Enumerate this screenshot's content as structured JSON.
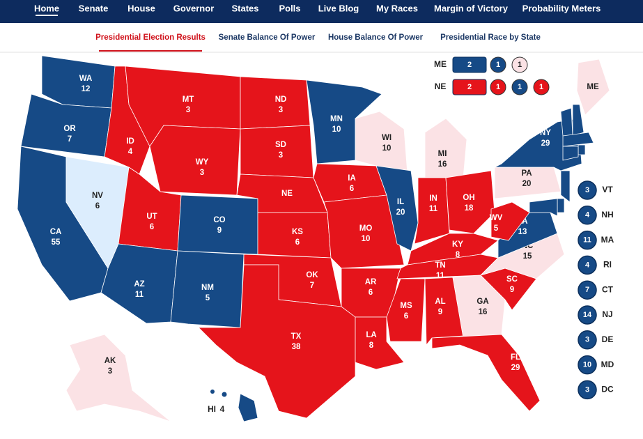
{
  "nav": {
    "items": [
      "Home",
      "Senate",
      "House",
      "Governor",
      "States",
      "Polls",
      "Live Blog",
      "My Races",
      "Margin of Victory",
      "Probability Meters"
    ],
    "active": 0
  },
  "subnav": {
    "items": [
      "Presidential Election Results",
      "Senate Balance Of Power",
      "House Balance Of Power",
      "Presidential Race by State"
    ],
    "active": 0
  },
  "map": {
    "states": [
      {
        "abbr": "WA",
        "votes": 12,
        "color": "#164a86"
      },
      {
        "abbr": "OR",
        "votes": 7,
        "color": "#164a86"
      },
      {
        "abbr": "CA",
        "votes": 55,
        "color": "#164a86"
      },
      {
        "abbr": "NV",
        "votes": 6,
        "color": "#dcedfd"
      },
      {
        "abbr": "ID",
        "votes": 4,
        "color": "#e5141b"
      },
      {
        "abbr": "MT",
        "votes": 3,
        "color": "#e5141b"
      },
      {
        "abbr": "WY",
        "votes": 3,
        "color": "#e5141b"
      },
      {
        "abbr": "UT",
        "votes": 6,
        "color": "#e5141b"
      },
      {
        "abbr": "CO",
        "votes": 9,
        "color": "#164a86"
      },
      {
        "abbr": "AZ",
        "votes": 11,
        "color": "#164a86"
      },
      {
        "abbr": "NM",
        "votes": 5,
        "color": "#164a86"
      },
      {
        "abbr": "ND",
        "votes": 3,
        "color": "#e5141b"
      },
      {
        "abbr": "SD",
        "votes": 3,
        "color": "#e5141b"
      },
      {
        "abbr": "NE",
        "color": "#e5141b"
      },
      {
        "abbr": "KS",
        "votes": 6,
        "color": "#e5141b"
      },
      {
        "abbr": "OK",
        "votes": 7,
        "color": "#e5141b"
      },
      {
        "abbr": "TX",
        "votes": 38,
        "color": "#e5141b"
      },
      {
        "abbr": "MN",
        "votes": 10,
        "color": "#164a86"
      },
      {
        "abbr": "IA",
        "votes": 6,
        "color": "#e5141b"
      },
      {
        "abbr": "MO",
        "votes": 10,
        "color": "#e5141b"
      },
      {
        "abbr": "AR",
        "votes": 6,
        "color": "#e5141b"
      },
      {
        "abbr": "LA",
        "votes": 8,
        "color": "#e5141b"
      },
      {
        "abbr": "WI",
        "votes": 10,
        "color": "#fbe2e5"
      },
      {
        "abbr": "IL",
        "votes": 20,
        "color": "#164a86"
      },
      {
        "abbr": "MI",
        "votes": 16,
        "color": "#fbe2e5"
      },
      {
        "abbr": "IN",
        "votes": 11,
        "color": "#e5141b"
      },
      {
        "abbr": "OH",
        "votes": 18,
        "color": "#e5141b"
      },
      {
        "abbr": "KY",
        "votes": 8,
        "color": "#e5141b"
      },
      {
        "abbr": "TN",
        "votes": 11,
        "color": "#e5141b"
      },
      {
        "abbr": "MS",
        "votes": 6,
        "color": "#e5141b"
      },
      {
        "abbr": "AL",
        "votes": 9,
        "color": "#e5141b"
      },
      {
        "abbr": "GA",
        "votes": 16,
        "color": "#fbe2e5"
      },
      {
        "abbr": "FL",
        "votes": 29,
        "color": "#e5141b"
      },
      {
        "abbr": "SC",
        "votes": 9,
        "color": "#e5141b"
      },
      {
        "abbr": "NC",
        "votes": 15,
        "color": "#fbe2e5"
      },
      {
        "abbr": "VA",
        "votes": 13,
        "color": "#164a86"
      },
      {
        "abbr": "WV",
        "votes": 5,
        "color": "#e5141b"
      },
      {
        "abbr": "PA",
        "votes": 20,
        "color": "#fbe2e5"
      },
      {
        "abbr": "NY",
        "votes": 29,
        "color": "#164a86"
      },
      {
        "abbr": "ME",
        "color": "#fbe2e5"
      },
      {
        "abbr": "AK",
        "votes": 3,
        "color": "#fbe2e5"
      },
      {
        "abbr": "HI",
        "votes": 4,
        "color": "#164a86"
      }
    ],
    "small_states": [
      {
        "abbr": "VT",
        "votes": 3,
        "color": "#164a86"
      },
      {
        "abbr": "NH",
        "votes": 4,
        "color": "#164a86"
      },
      {
        "abbr": "MA",
        "votes": 11,
        "color": "#164a86"
      },
      {
        "abbr": "RI",
        "votes": 4,
        "color": "#164a86"
      },
      {
        "abbr": "CT",
        "votes": 7,
        "color": "#164a86"
      },
      {
        "abbr": "NJ",
        "votes": 14,
        "color": "#164a86"
      },
      {
        "abbr": "DE",
        "votes": 3,
        "color": "#164a86"
      },
      {
        "abbr": "MD",
        "votes": 10,
        "color": "#164a86"
      },
      {
        "abbr": "DC",
        "votes": 3,
        "color": "#164a86"
      }
    ],
    "splits": [
      {
        "state": "ME",
        "parts": [
          {
            "votes": 2,
            "color": "#164a86"
          },
          {
            "votes": 1,
            "color": "#164a86"
          },
          {
            "votes": 1,
            "color": "#fbe2e5"
          }
        ]
      },
      {
        "state": "NE",
        "parts": [
          {
            "votes": 2,
            "color": "#e5141b"
          },
          {
            "votes": 1,
            "color": "#e5141b"
          },
          {
            "votes": 1,
            "color": "#164a86"
          },
          {
            "votes": 1,
            "color": "#e5141b"
          }
        ]
      }
    ]
  }
}
